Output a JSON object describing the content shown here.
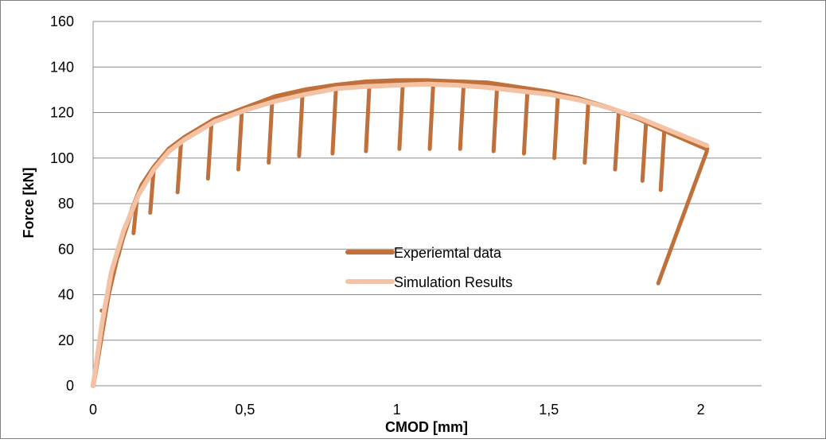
{
  "chart_data": {
    "type": "line",
    "title": "",
    "xlabel": "CMOD [mm]",
    "ylabel": "Force [kN]",
    "xlim": [
      0,
      2.2
    ],
    "ylim": [
      0,
      160
    ],
    "x_ticks": [
      0,
      0.5,
      1,
      1.5,
      2
    ],
    "x_tick_labels": [
      "0",
      "0,5",
      "1",
      "1,5",
      "2"
    ],
    "y_ticks": [
      0,
      20,
      40,
      60,
      80,
      100,
      120,
      140,
      160
    ],
    "y_tick_labels": [
      "0",
      "20",
      "40",
      "60",
      "80",
      "100",
      "120",
      "140",
      "160"
    ],
    "grid": "horizontal",
    "legend_position": "center",
    "series": [
      {
        "name": "Experiemtal data",
        "color": "#C0703A",
        "envelope": [
          [
            0,
            0
          ],
          [
            0.05,
            40
          ],
          [
            0.08,
            57
          ],
          [
            0.1,
            66
          ],
          [
            0.13,
            78
          ],
          [
            0.16,
            88
          ],
          [
            0.2,
            96
          ],
          [
            0.25,
            104
          ],
          [
            0.3,
            109
          ],
          [
            0.4,
            117
          ],
          [
            0.5,
            122
          ],
          [
            0.6,
            127
          ],
          [
            0.7,
            130
          ],
          [
            0.8,
            132
          ],
          [
            0.9,
            133.5
          ],
          [
            1.0,
            134
          ],
          [
            1.1,
            134
          ],
          [
            1.2,
            133.5
          ],
          [
            1.3,
            133
          ],
          [
            1.4,
            131
          ],
          [
            1.5,
            129
          ],
          [
            1.6,
            126
          ],
          [
            1.7,
            122
          ],
          [
            1.8,
            117
          ],
          [
            1.9,
            111
          ],
          [
            2.02,
            104
          ]
        ],
        "unload_drops": [
          [
            0.04,
            33
          ],
          [
            0.065,
            46
          ],
          [
            0.095,
            57
          ],
          [
            0.145,
            67
          ],
          [
            0.2,
            76
          ],
          [
            0.29,
            85
          ],
          [
            0.39,
            91
          ],
          [
            0.49,
            95
          ],
          [
            0.59,
            98
          ],
          [
            0.69,
            101
          ],
          [
            0.8,
            102
          ],
          [
            0.91,
            103
          ],
          [
            1.02,
            104
          ],
          [
            1.12,
            104
          ],
          [
            1.22,
            104
          ],
          [
            1.33,
            103
          ],
          [
            1.43,
            102
          ],
          [
            1.53,
            100
          ],
          [
            1.63,
            98
          ],
          [
            1.73,
            95
          ],
          [
            1.82,
            90
          ],
          [
            1.88,
            86
          ]
        ],
        "final_unload": [
          [
            2.02,
            103
          ],
          [
            1.86,
            45
          ]
        ]
      },
      {
        "name": "Simulation Results",
        "color": "#F4C3A6",
        "points": [
          [
            0,
            0
          ],
          [
            0.03,
            28
          ],
          [
            0.06,
            50
          ],
          [
            0.1,
            68
          ],
          [
            0.15,
            84
          ],
          [
            0.2,
            95
          ],
          [
            0.25,
            103
          ],
          [
            0.3,
            108
          ],
          [
            0.4,
            116
          ],
          [
            0.5,
            121
          ],
          [
            0.6,
            125
          ],
          [
            0.7,
            128
          ],
          [
            0.8,
            130.5
          ],
          [
            0.9,
            131.5
          ],
          [
            1.0,
            132
          ],
          [
            1.1,
            132.5
          ],
          [
            1.2,
            132
          ],
          [
            1.3,
            131
          ],
          [
            1.4,
            129.5
          ],
          [
            1.5,
            128
          ],
          [
            1.6,
            125.5
          ],
          [
            1.7,
            122
          ],
          [
            1.8,
            117.5
          ],
          [
            1.9,
            112
          ],
          [
            2.02,
            105.5
          ]
        ]
      }
    ]
  }
}
